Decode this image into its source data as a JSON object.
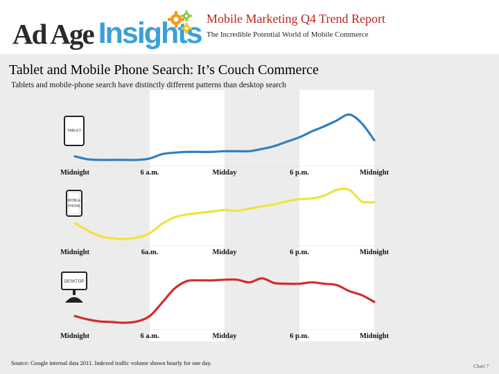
{
  "header": {
    "logo_brand": "Ad Age",
    "logo_product": "Insights",
    "report_title": "Mobile Marketing Q4 Trend Report",
    "report_subtitle": "The Incredible Potential World of Mobile Commerce"
  },
  "slide": {
    "title": "Tablet and Mobile Phone Search: It’s Couch Commerce",
    "subtitle": "Tablets and mobile-phone search have distinctly different patterns than desktop search"
  },
  "colors": {
    "tablet": "#2e7fc0",
    "mobile": "#f2e23a",
    "desktop": "#d42a2a",
    "band": "#ececec",
    "panel": "#ffffff",
    "title_red": "#b5271b",
    "brand_blue": "#3aa0d8"
  },
  "chart_data": [
    {
      "type": "line",
      "name": "Tablet",
      "device_icon_label": "TABLET",
      "icon": "tablet-icon",
      "x": [
        0,
        1,
        2,
        3,
        4,
        5,
        6,
        7,
        8,
        9,
        10,
        11,
        12,
        13,
        14,
        15,
        16,
        17,
        18,
        19,
        20,
        21,
        22,
        23,
        24
      ],
      "values": [
        6,
        2,
        1,
        1,
        1,
        1,
        3,
        9,
        11,
        12,
        12,
        12,
        13,
        13,
        13,
        16,
        20,
        26,
        32,
        40,
        47,
        55,
        63,
        51,
        28
      ],
      "x_tick_labels": [
        "Midnight",
        "6 a.m.",
        "Midday",
        "6 p.m.",
        "Midnight"
      ],
      "x_tick_hours": [
        0,
        6,
        12,
        18,
        24
      ],
      "ylim": [
        0,
        70
      ],
      "shaded_hours": [
        [
          6,
          12
        ],
        [
          18,
          24
        ]
      ],
      "y_axis_shown": false
    },
    {
      "type": "line",
      "name": "Mobile Phone",
      "device_icon_label": "MOBILE PHONE",
      "icon": "mobile-phone-icon",
      "x": [
        0,
        1,
        2,
        3,
        4,
        5,
        6,
        7,
        8,
        9,
        10,
        11,
        12,
        13,
        14,
        15,
        16,
        17,
        18,
        19,
        20,
        21,
        22,
        23,
        24
      ],
      "values": [
        22,
        12,
        4,
        1,
        0,
        2,
        8,
        21,
        30,
        34,
        36,
        38,
        40,
        39,
        42,
        45,
        48,
        52,
        55,
        56,
        60,
        68,
        68,
        52,
        51
      ],
      "x_tick_labels": [
        "Midnight",
        "6a.m.",
        "Midday",
        "6 p.m.",
        "Midnight"
      ],
      "x_tick_hours": [
        0,
        6,
        12,
        18,
        24
      ],
      "ylim": [
        0,
        70
      ],
      "shaded_hours": [
        [
          6,
          12
        ],
        [
          18,
          24
        ]
      ],
      "y_axis_shown": false
    },
    {
      "type": "line",
      "name": "Desktop",
      "device_icon_label": "DESKTOP",
      "icon": "desktop-icon",
      "x": [
        0,
        1,
        2,
        3,
        4,
        5,
        6,
        7,
        8,
        9,
        10,
        11,
        12,
        13,
        14,
        15,
        16,
        17,
        18,
        19,
        20,
        21,
        22,
        23,
        24
      ],
      "values": [
        10,
        5,
        2,
        1,
        0,
        2,
        10,
        30,
        51,
        62,
        63,
        63,
        64,
        64,
        60,
        66,
        59,
        58,
        58,
        60,
        58,
        56,
        47,
        41,
        31
      ],
      "x_tick_labels": [
        "Midnight",
        "6 a.m.",
        "Midday",
        "6 p.m.",
        "Midnight"
      ],
      "x_tick_hours": [
        0,
        6,
        12,
        18,
        24
      ],
      "ylim": [
        0,
        70
      ],
      "shaded_hours": [
        [
          6,
          12
        ],
        [
          18,
          24
        ]
      ],
      "y_axis_shown": false
    }
  ],
  "footer": {
    "source": "Source: Google internal data 2011. Indexed traffic volume shown hourly for one day.",
    "chart_number": "Chart 7"
  }
}
